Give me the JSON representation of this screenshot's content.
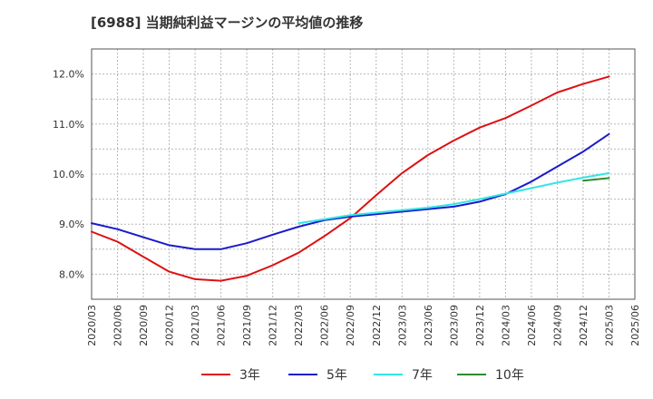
{
  "chart_data": {
    "type": "line",
    "title": "[6988]  当期純利益マージンの平均値の推移",
    "xlabel": "",
    "ylabel": "",
    "x_ticks": [
      "2020/03",
      "2020/06",
      "2020/09",
      "2020/12",
      "2021/03",
      "2021/06",
      "2021/09",
      "2021/12",
      "2022/03",
      "2022/06",
      "2022/09",
      "2022/12",
      "2023/03",
      "2023/06",
      "2023/09",
      "2023/12",
      "2024/03",
      "2024/06",
      "2024/09",
      "2024/12",
      "2025/03",
      "2025/06"
    ],
    "y_ticks": [
      "8.0%",
      "9.0%",
      "10.0%",
      "11.0%",
      "12.0%"
    ],
    "y_tick_values": [
      8.0,
      9.0,
      10.0,
      11.0,
      12.0
    ],
    "ylim": [
      7.5,
      12.5
    ],
    "grid": true,
    "legend_position": "bottom",
    "series": [
      {
        "name": "3年",
        "color": "#dd1111",
        "x": [
          "2020/03",
          "2020/06",
          "2020/09",
          "2020/12",
          "2021/03",
          "2021/06",
          "2021/09",
          "2021/12",
          "2022/03",
          "2022/06",
          "2022/09",
          "2022/12",
          "2023/03",
          "2023/06",
          "2023/09",
          "2023/12",
          "2024/03",
          "2024/06",
          "2024/09",
          "2024/12",
          "2025/03"
        ],
        "values": [
          8.85,
          8.65,
          8.35,
          8.05,
          7.9,
          7.87,
          7.97,
          8.18,
          8.43,
          8.76,
          9.12,
          9.58,
          10.02,
          10.38,
          10.67,
          10.93,
          11.12,
          11.37,
          11.63,
          11.8,
          11.95
        ]
      },
      {
        "name": "5年",
        "color": "#1a1acc",
        "x": [
          "2020/03",
          "2020/06",
          "2020/09",
          "2020/12",
          "2021/03",
          "2021/06",
          "2021/09",
          "2021/12",
          "2022/03",
          "2022/06",
          "2022/09",
          "2022/12",
          "2023/03",
          "2023/06",
          "2023/09",
          "2023/12",
          "2024/03",
          "2024/06",
          "2024/09",
          "2024/12",
          "2025/03"
        ],
        "values": [
          9.02,
          8.9,
          8.74,
          8.58,
          8.5,
          8.5,
          8.62,
          8.79,
          8.95,
          9.08,
          9.15,
          9.2,
          9.25,
          9.3,
          9.35,
          9.45,
          9.6,
          9.85,
          10.15,
          10.45,
          10.8
        ]
      },
      {
        "name": "7年",
        "color": "#33e5e5",
        "x": [
          "2022/03",
          "2022/06",
          "2022/09",
          "2022/12",
          "2023/03",
          "2023/06",
          "2023/09",
          "2023/12",
          "2024/03",
          "2024/06",
          "2024/09",
          "2024/12",
          "2025/03"
        ],
        "values": [
          9.02,
          9.1,
          9.18,
          9.23,
          9.28,
          9.33,
          9.4,
          9.5,
          9.61,
          9.72,
          9.83,
          9.93,
          10.02
        ]
      },
      {
        "name": "10年",
        "color": "#2e8b2e",
        "x": [
          "2024/12",
          "2025/03"
        ],
        "values": [
          9.87,
          9.92
        ]
      }
    ]
  }
}
